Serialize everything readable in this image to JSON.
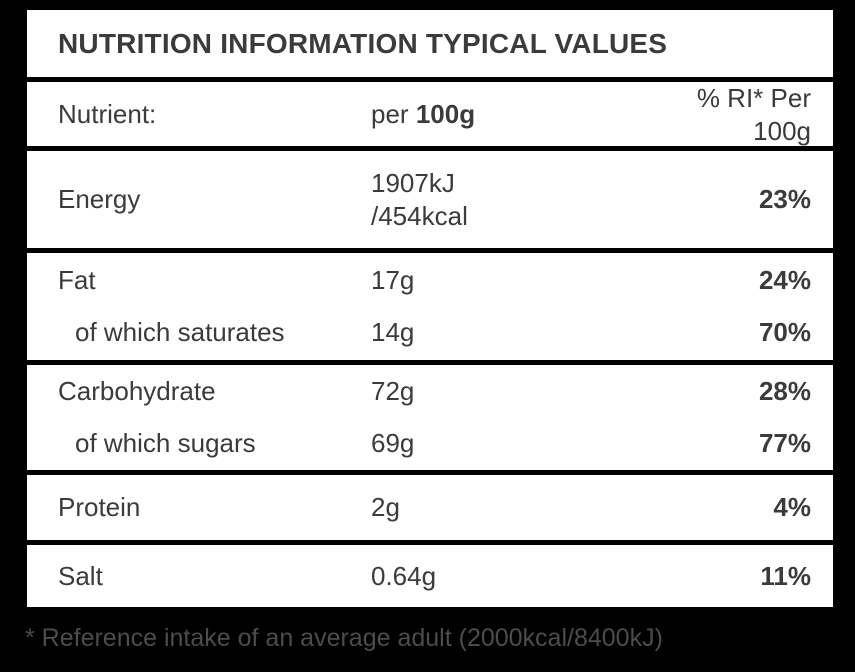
{
  "colors": {
    "bg": "#000000",
    "panel": "#ffffff",
    "text": "#3b3b3b",
    "footnote_text": "#4c4c4c"
  },
  "table": {
    "title": "NUTRITION INFORMATION TYPICAL VALUES",
    "header": {
      "nutrient": "Nutrient:",
      "per_prefix": "per ",
      "per_amount": "100g",
      "ri": "% RI* Per 100g"
    },
    "rows": [
      {
        "label": "Energy",
        "value": "1907kJ\n/454kcal",
        "ri": "23%"
      },
      {
        "label": "Fat",
        "value": "17g",
        "ri": "24%"
      },
      {
        "label": "of which saturates",
        "value": "14g",
        "ri": "70%"
      },
      {
        "label": "Carbohydrate",
        "value": "72g",
        "ri": "28%"
      },
      {
        "label": "of which sugars",
        "value": "69g",
        "ri": "77%"
      },
      {
        "label": "Protein",
        "value": "2g",
        "ri": "4%"
      },
      {
        "label": "Salt",
        "value": "0.64g",
        "ri": "11%"
      }
    ],
    "footnote": "* Reference intake of an average adult (2000kcal/8400kJ)"
  }
}
